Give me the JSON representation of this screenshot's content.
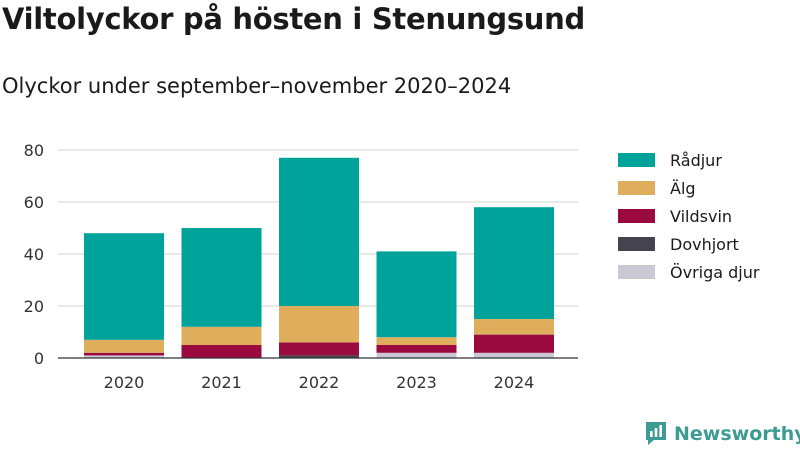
{
  "title": "Viltolyckor på hösten i Stenungsund",
  "subtitle": "Olyckor under september–november 2020–2024",
  "brand": {
    "name": "Newsworthy",
    "icon": "newsworthy-logo-icon",
    "color": "#3d9b94"
  },
  "chart_data": {
    "type": "bar",
    "stacked": true,
    "title": "Viltolyckor på hösten i Stenungsund",
    "subtitle": "Olyckor under september–november 2020–2024",
    "xlabel": "",
    "ylabel": "",
    "categories": [
      "2020",
      "2021",
      "2022",
      "2023",
      "2024"
    ],
    "ylim": [
      0,
      80
    ],
    "yticks": [
      0,
      20,
      40,
      60,
      80
    ],
    "grid": true,
    "legend_position": "right",
    "series": [
      {
        "name": "Övriga djur",
        "color": "#cbc8d6",
        "values": [
          1,
          0,
          0,
          2,
          2
        ]
      },
      {
        "name": "Dovhjort",
        "color": "#44434f",
        "values": [
          0,
          0,
          1,
          0,
          0
        ]
      },
      {
        "name": "Vildsvin",
        "color": "#9b0a3e",
        "values": [
          1,
          5,
          5,
          3,
          7
        ]
      },
      {
        "name": "Älg",
        "color": "#deae5d",
        "values": [
          5,
          7,
          14,
          3,
          6
        ]
      },
      {
        "name": "Rådjur",
        "color": "#00a39a",
        "values": [
          41,
          38,
          57,
          33,
          43
        ]
      }
    ]
  }
}
